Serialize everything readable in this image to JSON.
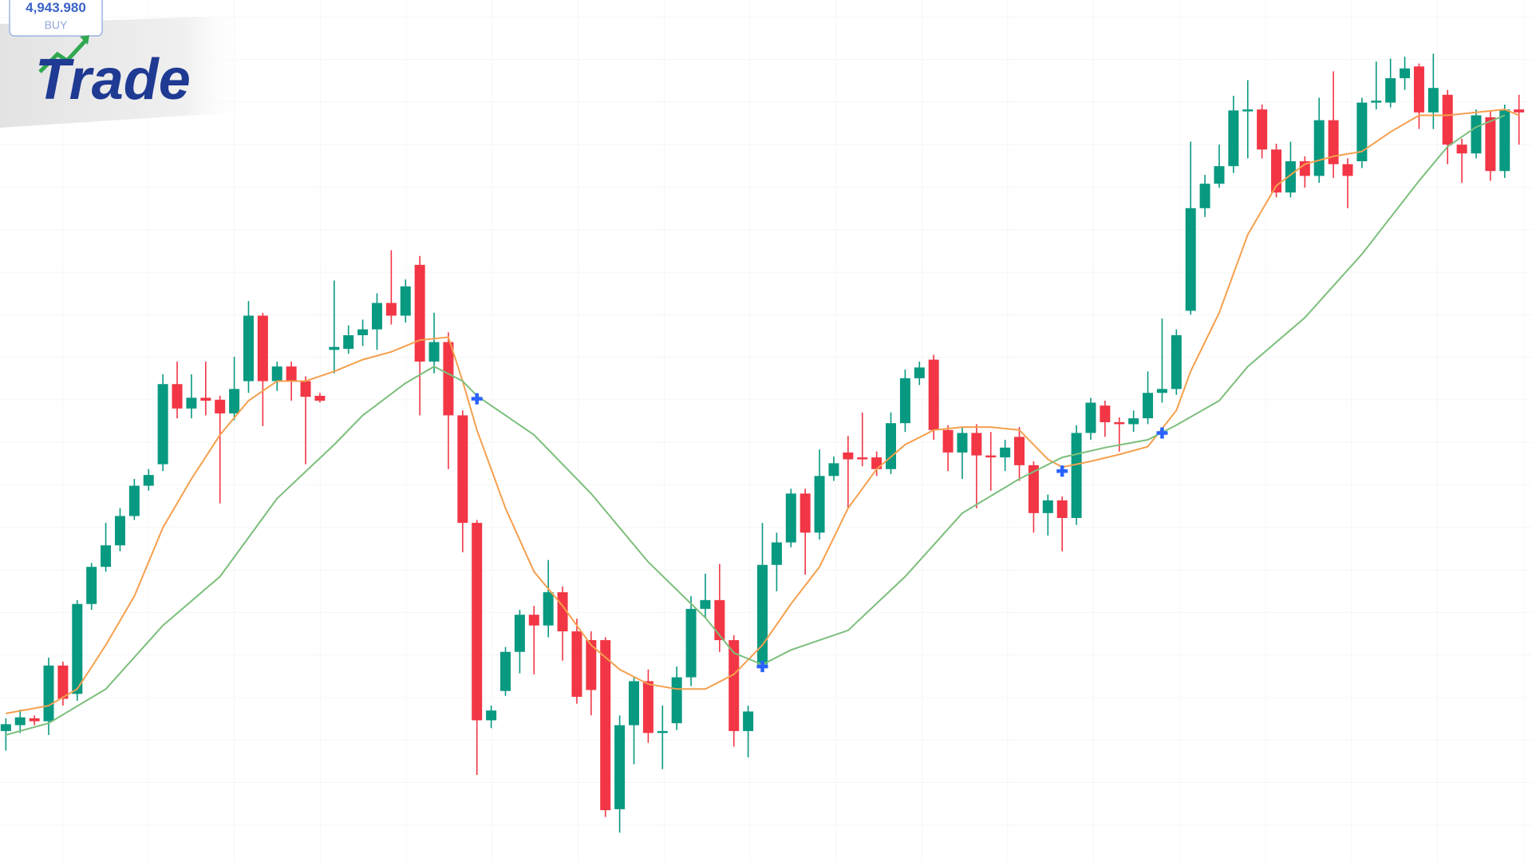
{
  "chart_data": {
    "type": "candlestick",
    "badge": {
      "price": "4,943.980",
      "side": "BUY"
    },
    "logo": "Trade",
    "up_color": "#089981",
    "down_color": "#f23645",
    "open": [
      134,
      140,
      147,
      144,
      201,
      172,
      264,
      302,
      324,
      354,
      385,
      407,
      489,
      464,
      475,
      473,
      459,
      492,
      559,
      492,
      507,
      492,
      477,
      524,
      525,
      539,
      545,
      572,
      559,
      611,
      512,
      532,
      457,
      347,
      145,
      175,
      215,
      253,
      242,
      276,
      236,
      227,
      227,
      54,
      140,
      185,
      132,
      142,
      189,
      259,
      268,
      227,
      134,
      202,
      304,
      327,
      377,
      337,
      395,
      419,
      414,
      414,
      402,
      449,
      495,
      514,
      442,
      419,
      439,
      416,
      414,
      435,
      406,
      357,
      370,
      352,
      439,
      467,
      450,
      448,
      454,
      480,
      484,
      564,
      669,
      694,
      712,
      768,
      770,
      729,
      685,
      717,
      702,
      759,
      714,
      717,
      777,
      777,
      802,
      814,
      767,
      785,
      734,
      725,
      762,
      707,
      770
    ],
    "high": [
      147,
      156,
      150,
      209,
      205,
      268,
      306,
      347,
      362,
      392,
      402,
      499,
      512,
      499,
      512,
      477,
      517,
      574,
      562,
      512,
      512,
      497,
      480,
      595,
      549,
      555,
      582,
      626,
      596,
      620,
      562,
      542,
      462,
      350,
      160,
      220,
      258,
      262,
      309,
      282,
      249,
      236,
      230,
      150,
      190,
      197,
      160,
      200,
      272,
      295,
      305,
      232,
      160,
      347,
      337,
      382,
      382,
      422,
      415,
      436,
      460,
      420,
      460,
      504,
      512,
      519,
      447,
      445,
      448,
      440,
      432,
      445,
      410,
      376,
      374,
      447,
      475,
      472,
      455,
      462,
      502,
      556,
      545,
      737,
      703,
      734,
      784,
      800,
      775,
      735,
      737,
      722,
      782,
      809,
      720,
      782,
      819,
      822,
      824,
      817,
      827,
      790,
      740,
      770,
      768,
      775,
      785
    ],
    "low": [
      114,
      132,
      140,
      130,
      160,
      165,
      258,
      297,
      318,
      350,
      380,
      400,
      454,
      454,
      457,
      367,
      452,
      480,
      446,
      482,
      472,
      407,
      470,
      500,
      520,
      528,
      524,
      550,
      552,
      457,
      500,
      402,
      317,
      89,
      137,
      170,
      193,
      192,
      230,
      206,
      162,
      150,
      46,
      30,
      100,
      122,
      95,
      135,
      180,
      250,
      215,
      118,
      107,
      195,
      277,
      322,
      294,
      330,
      390,
      362,
      405,
      395,
      397,
      440,
      488,
      432,
      400,
      392,
      362,
      380,
      400,
      390,
      337,
      334,
      318,
      345,
      432,
      435,
      420,
      440,
      448,
      470,
      478,
      560,
      660,
      690,
      705,
      720,
      720,
      680,
      680,
      690,
      695,
      700,
      669,
      710,
      770,
      772,
      790,
      750,
      750,
      714,
      695,
      720,
      697,
      700,
      734
    ],
    "close": [
      141,
      148,
      144,
      201,
      167,
      264,
      302,
      324,
      354,
      385,
      396,
      489,
      464,
      475,
      472,
      459,
      484,
      559,
      492,
      507,
      492,
      476,
      472,
      527,
      539,
      545,
      572,
      559,
      589,
      512,
      532,
      457,
      347,
      145,
      155,
      215,
      253,
      242,
      276,
      236,
      169,
      176,
      53,
      140,
      185,
      132,
      134,
      189,
      259,
      268,
      227,
      134,
      154,
      304,
      327,
      377,
      337,
      395,
      408,
      412,
      412,
      402,
      449,
      495,
      506,
      442,
      419,
      439,
      416,
      414,
      424,
      406,
      357,
      370,
      352,
      439,
      470,
      450,
      448,
      454,
      480,
      484,
      539,
      669,
      694,
      712,
      769,
      770,
      729,
      685,
      717,
      702,
      759,
      714,
      702,
      777,
      779,
      802,
      812,
      767,
      792,
      734,
      725,
      764,
      707,
      770,
      767
    ],
    "series": [
      {
        "color": "#f5a04e",
        "x": [
          0,
          3,
          5,
          7,
          9,
          11,
          13,
          15,
          17,
          19,
          21,
          23,
          25,
          27,
          29,
          31,
          32,
          33,
          35,
          37,
          39,
          41,
          43,
          45,
          47,
          49,
          51,
          53,
          55,
          57,
          59,
          61,
          63,
          65,
          67,
          69,
          71,
          73,
          74,
          76,
          78,
          80,
          82,
          83,
          85,
          87,
          89,
          91,
          93,
          95,
          97,
          99,
          101,
          103,
          105,
          106
        ],
        "values": [
          152,
          160,
          177,
          222,
          272,
          342,
          392,
          437,
          472,
          492,
          492,
          502,
          514,
          522,
          534,
          537,
          492,
          442,
          362,
          297,
          262,
          222,
          197,
          182,
          177,
          177,
          192,
          222,
          264,
          302,
          362,
          402,
          427,
          442,
          445,
          445,
          442,
          412,
          404,
          410,
          417,
          425,
          462,
          502,
          562,
          642,
          692,
          714,
          722,
          727,
          747,
          764,
          764,
          767,
          770,
          764
        ]
      },
      {
        "color": "#7cbf7c",
        "x": [
          0,
          3,
          7,
          11,
          15,
          19,
          23,
          25,
          28,
          30,
          32,
          33,
          37,
          41,
          45,
          49,
          51,
          53,
          55,
          59,
          63,
          67,
          71,
          74,
          77,
          80,
          82,
          85,
          87,
          91,
          95,
          99,
          101,
          103,
          105
        ],
        "values": [
          130,
          142,
          177,
          242,
          292,
          372,
          427,
          457,
          490,
          507,
          492,
          477,
          437,
          377,
          307,
          250,
          214,
          202,
          217,
          237,
          292,
          357,
          392,
          414,
          424,
          432,
          447,
          472,
          507,
          557,
          622,
          697,
          732,
          752,
          764
        ]
      }
    ],
    "signals": {
      "color": "#2962ff",
      "x": [
        33,
        53,
        74,
        81
      ],
      "values": [
        474,
        200,
        400,
        439
      ]
    }
  }
}
